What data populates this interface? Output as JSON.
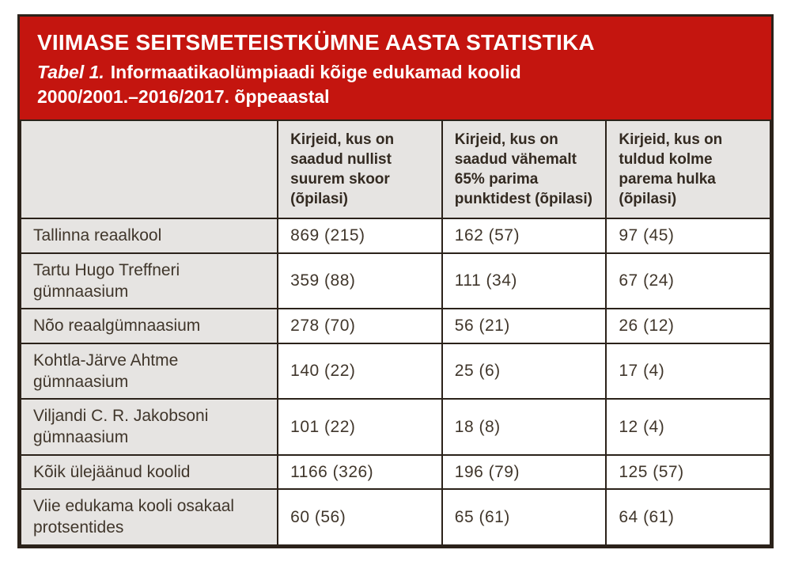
{
  "colors": {
    "banner_red": "#c4150f",
    "banner_text": "#ffffff",
    "cell_gray": "#e6e4e2",
    "border_dark": "#2b221a",
    "body_text": "#40362b"
  },
  "header": {
    "title": "VIIMASE SEITSMETEISTKÜMNE AASTA STATISTIKA",
    "subtitle_label": "Tabel 1.",
    "subtitle_text": "Informaatikaolümpiaadi kõige edukamad koolid\n2000/2001.–2016/2017. õppeaastal"
  },
  "table": {
    "columns": [
      "",
      "Kirjeid, kus on saadud nullist suurem skoor (õpilasi)",
      "Kirjeid, kus on saadud vähemalt 65% parima punktidest (õpilasi)",
      "Kirjeid, kus on tuldud kolme parema hulka (õpilasi)"
    ],
    "rows": [
      {
        "label": "Tallinna reaalkool",
        "values": [
          "869 (215)",
          "162 (57)",
          "97 (45)"
        ]
      },
      {
        "label": "Tartu Hugo Treffneri gümnaasium",
        "values": [
          "359 (88)",
          "111 (34)",
          "67 (24)"
        ]
      },
      {
        "label": "Nõo reaalgümnaasium",
        "values": [
          "278 (70)",
          "56 (21)",
          "26 (12)"
        ]
      },
      {
        "label": "Kohtla-Järve Ahtme gümnaasium",
        "values": [
          "140 (22)",
          "25 (6)",
          "17 (4)"
        ]
      },
      {
        "label": "Viljandi C. R. Jakobsoni gümnaasium",
        "values": [
          "101 (22)",
          "18 (8)",
          "12 (4)"
        ]
      },
      {
        "label": "Kõik ülejäänud koolid",
        "values": [
          "1166 (326)",
          "196 (79)",
          "125 (57)"
        ]
      },
      {
        "label": "Viie edukama kooli osakaal protsentides",
        "values": [
          "60 (56)",
          "65 (61)",
          "64 (61)"
        ]
      }
    ]
  }
}
